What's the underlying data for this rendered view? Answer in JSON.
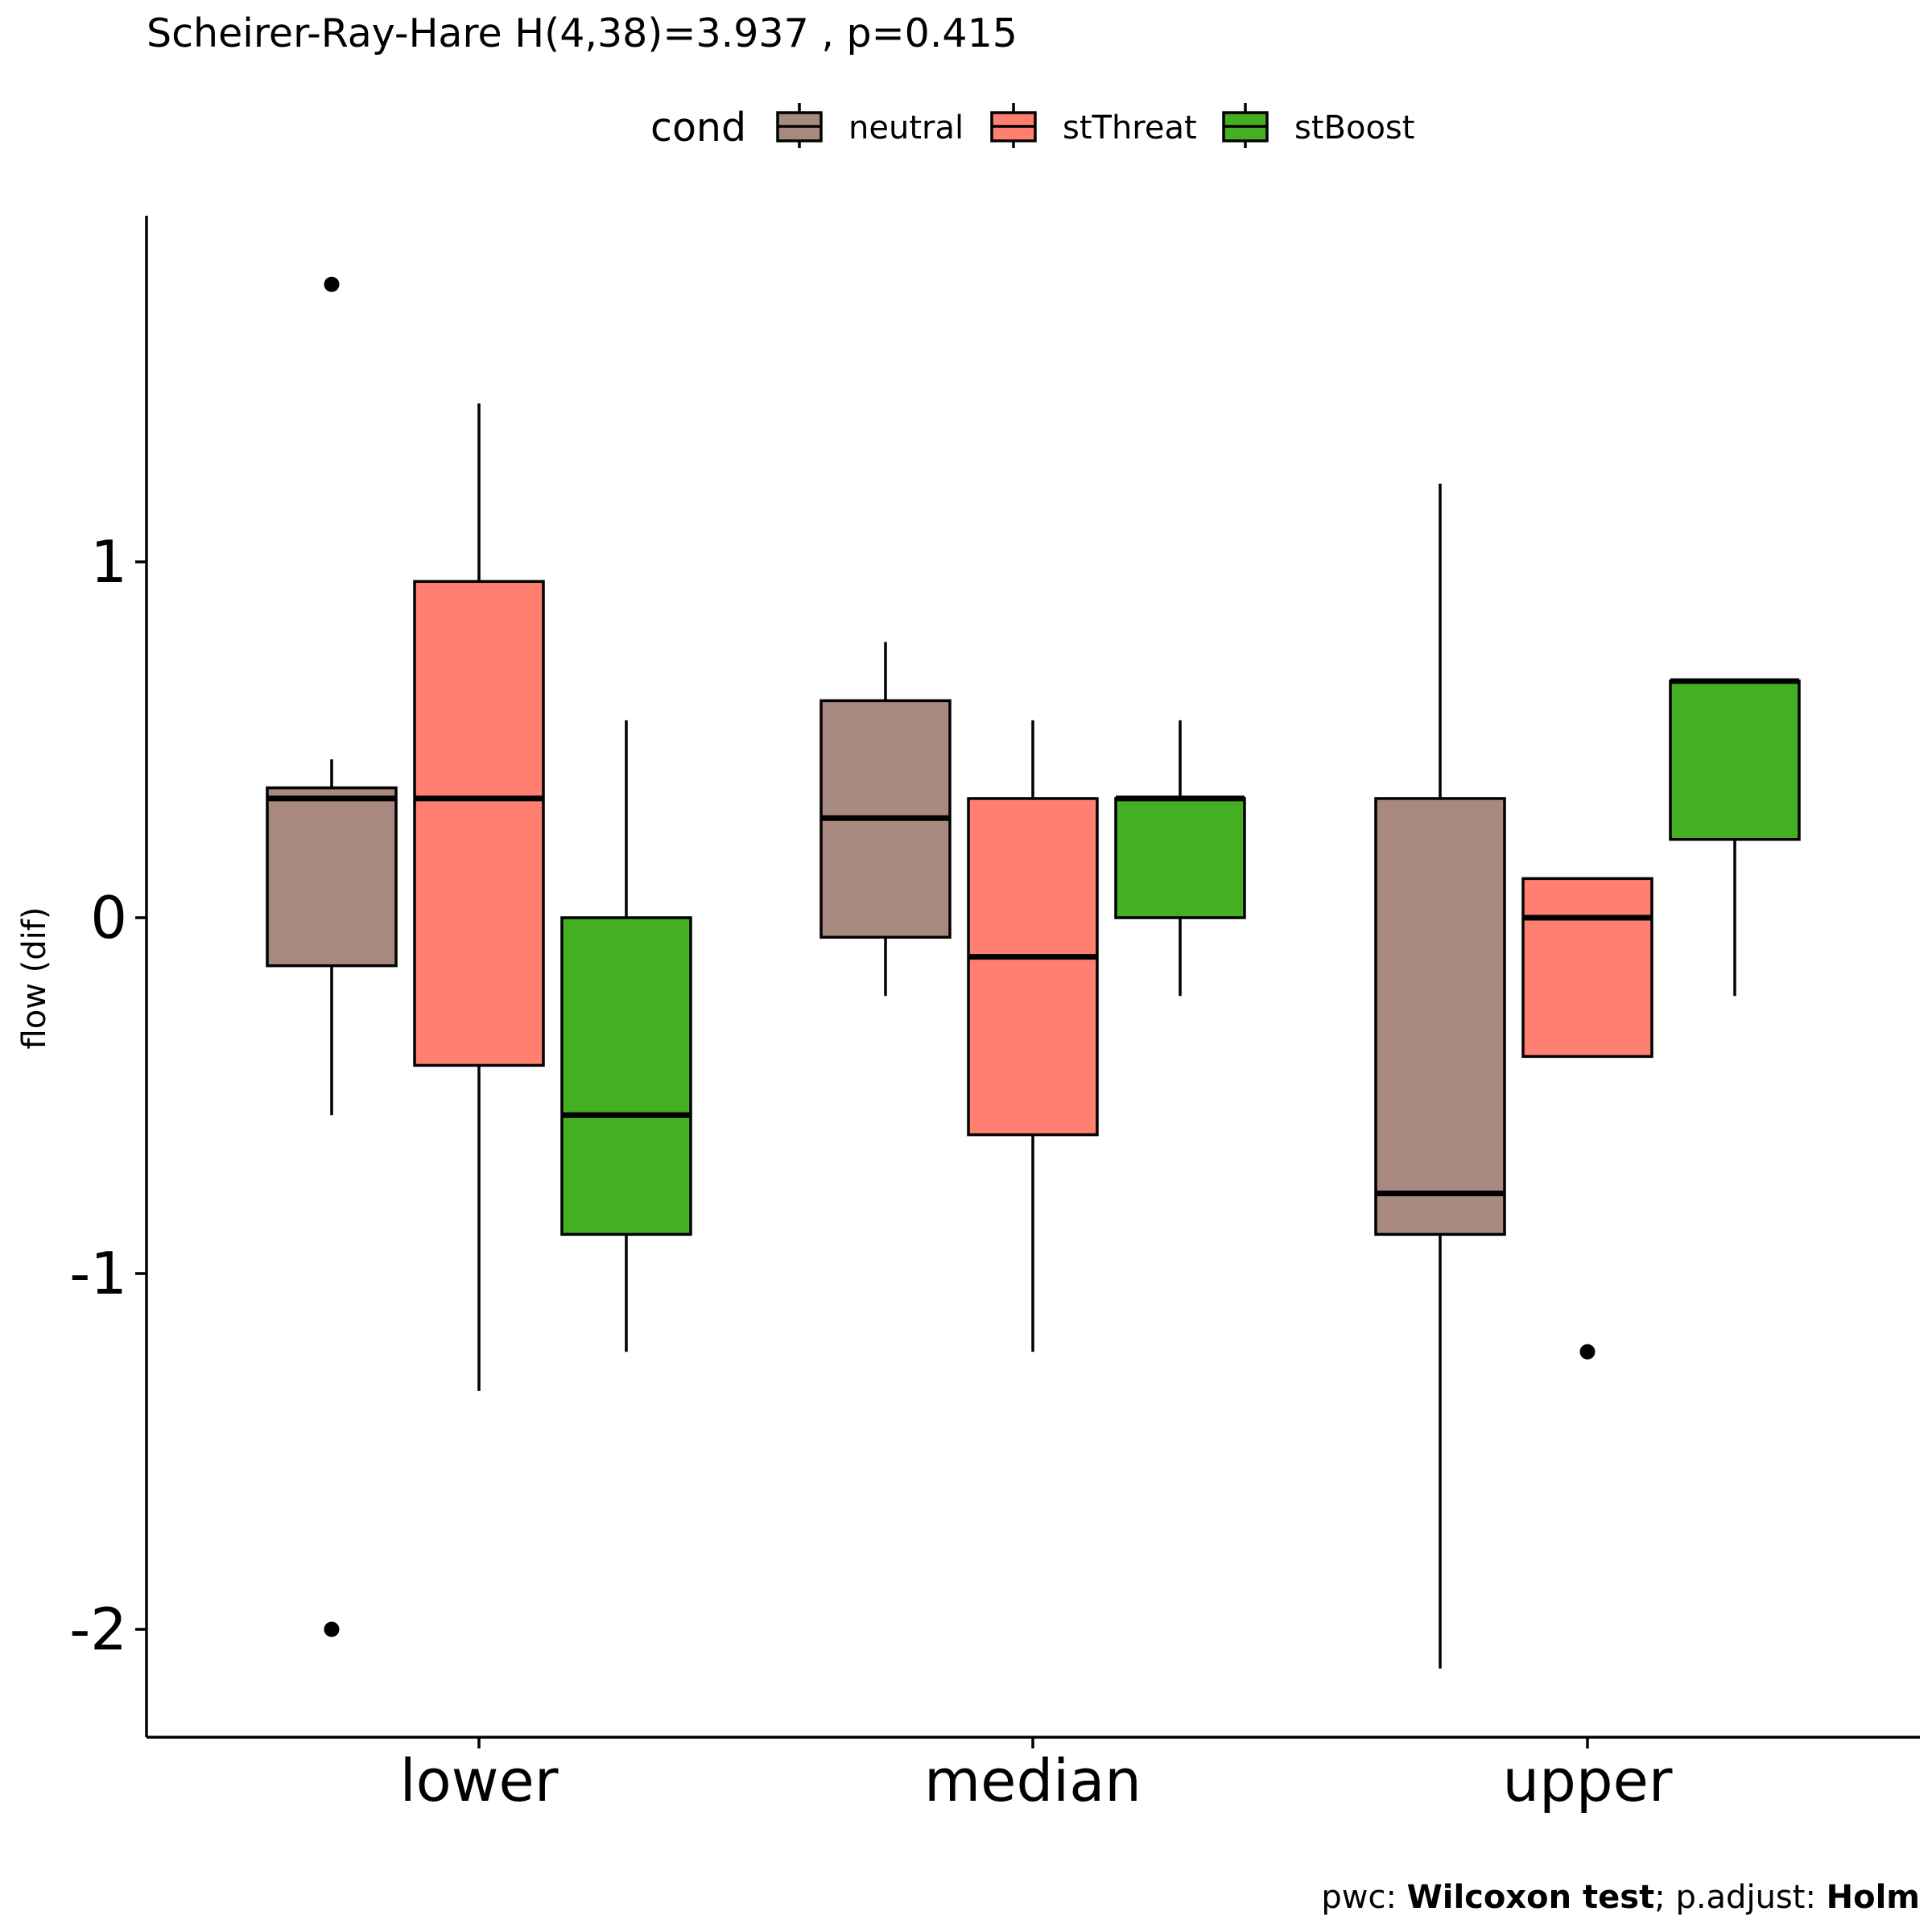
{
  "chart_data": {
    "type": "box",
    "title": "Scheirer-Ray-Hare H(4,38)=3.937 , p=0.415",
    "xlabel": "",
    "ylabel": "flow (dif)",
    "ylim": [
      -2.3,
      1.95
    ],
    "yticks": [
      1,
      0,
      -1,
      -2
    ],
    "ytick_labels": [
      "1",
      "0",
      "-1",
      "-2"
    ],
    "categories": [
      "lower",
      "median",
      "upper"
    ],
    "legend": {
      "title": "cond",
      "position": "top"
    },
    "grid": false,
    "caption": {
      "prefix": "pwc: ",
      "test": "Wilcoxon test",
      "middle": "; p.adjust: ",
      "adjust": "Holm"
    },
    "series": [
      {
        "name": "neutral",
        "color": "#A88980",
        "boxes": [
          {
            "q1": -0.135,
            "median": 0.335,
            "q3": 0.365,
            "whisker_low": -0.555,
            "whisker_high": 0.445,
            "outliers": [
              1.78,
              -2.0
            ]
          },
          {
            "q1": -0.055,
            "median": 0.28,
            "q3": 0.61,
            "whisker_low": -0.22,
            "whisker_high": 0.775,
            "outliers": []
          },
          {
            "q1": -0.89,
            "median": -0.775,
            "q3": 0.335,
            "whisker_low": -2.11,
            "whisker_high": 1.22,
            "outliers": []
          }
        ]
      },
      {
        "name": "stThreat",
        "color": "#FF8070",
        "boxes": [
          {
            "q1": -0.415,
            "median": 0.335,
            "q3": 0.945,
            "whisker_low": -1.33,
            "whisker_high": 1.445,
            "outliers": []
          },
          {
            "q1": -0.61,
            "median": -0.11,
            "q3": 0.335,
            "whisker_low": -1.22,
            "whisker_high": 0.555,
            "outliers": []
          },
          {
            "q1": -0.39,
            "median": 0.0,
            "q3": 0.11,
            "whisker_low": -0.39,
            "whisker_high": 0.11,
            "outliers": [
              -1.22
            ]
          }
        ]
      },
      {
        "name": "stBoost",
        "color": "#44AF22",
        "boxes": [
          {
            "q1": -0.89,
            "median": -0.555,
            "q3": 0.0,
            "whisker_low": -1.22,
            "whisker_high": 0.555,
            "outliers": []
          },
          {
            "q1": 0.0,
            "median": 0.335,
            "q3": 0.335,
            "whisker_low": -0.22,
            "whisker_high": 0.555,
            "outliers": []
          },
          {
            "q1": 0.22,
            "median": 0.665,
            "q3": 0.665,
            "whisker_low": -0.22,
            "whisker_high": 0.665,
            "outliers": []
          }
        ]
      }
    ]
  }
}
